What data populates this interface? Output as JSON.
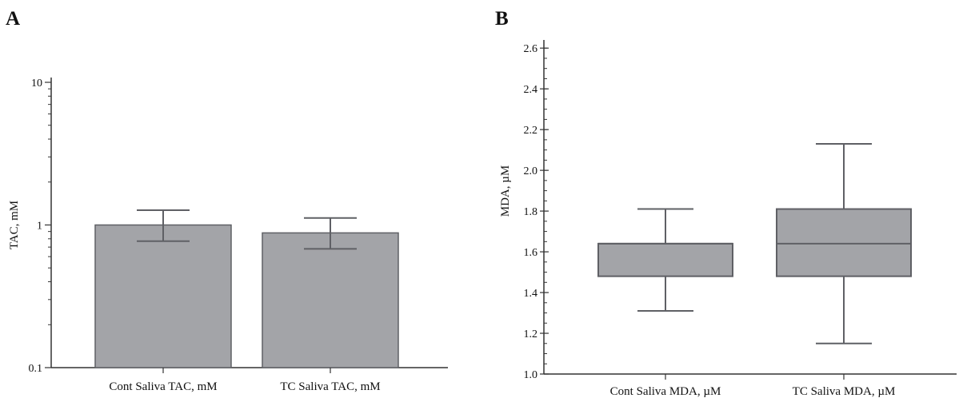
{
  "panels": {
    "a": {
      "letter": "A"
    },
    "b": {
      "letter": "B"
    }
  },
  "colors": {
    "fill": "#a3a4a8",
    "stroke": "#5f6065",
    "axis": "#333333"
  },
  "chart_data": [
    {
      "type": "bar",
      "scale": "log",
      "ylabel": "TAC, mM",
      "ylim": [
        0.1,
        10
      ],
      "yticks": [
        {
          "value": 0.1,
          "label": "0.1"
        },
        {
          "value": 1,
          "label": "1"
        },
        {
          "value": 10,
          "label": "10"
        }
      ],
      "categories": [
        "Cont Saliva TAC, mM",
        "TC Saliva TAC, mM"
      ],
      "values": [
        1.0,
        0.88
      ],
      "error_low": [
        0.77,
        0.68
      ],
      "error_high": [
        1.27,
        1.12
      ]
    },
    {
      "type": "box",
      "ylabel": "MDA, µM",
      "ylim": [
        1.0,
        2.64
      ],
      "yticks": [
        {
          "value": 1.0,
          "label": "1.0"
        },
        {
          "value": 1.2,
          "label": "1.2"
        },
        {
          "value": 1.4,
          "label": "1.4"
        },
        {
          "value": 1.6,
          "label": "1.6"
        },
        {
          "value": 1.8,
          "label": "1.8"
        },
        {
          "value": 2.0,
          "label": "2.0"
        },
        {
          "value": 2.2,
          "label": "2.2"
        },
        {
          "value": 2.4,
          "label": "2.4"
        },
        {
          "value": 2.6,
          "label": "2.6"
        }
      ],
      "categories": [
        "Cont Saliva MDA, µM",
        "TC Saliva MDA, µM"
      ],
      "boxes": [
        {
          "min": 1.31,
          "q1": 1.48,
          "median": 1.64,
          "q3": 1.64,
          "max": 1.81
        },
        {
          "min": 1.15,
          "q1": 1.48,
          "median": 1.64,
          "q3": 1.81,
          "max": 2.13
        }
      ]
    }
  ]
}
